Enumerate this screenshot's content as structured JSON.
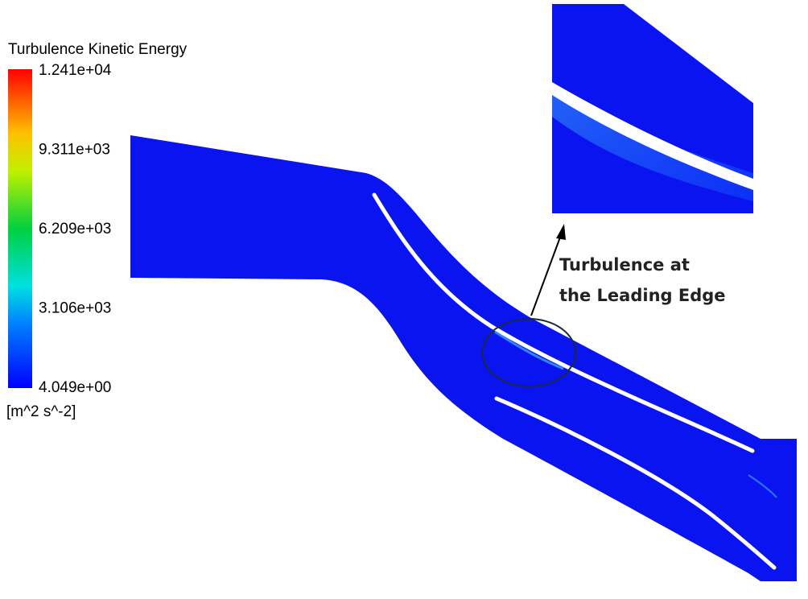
{
  "legend": {
    "title": "Turbulence Kinetic Energy",
    "ticks": [
      "1.241e+04",
      "9.311e+03",
      "6.209e+03",
      "3.106e+03",
      "4.049e+00"
    ],
    "unit": "[m^2 s^-2]"
  },
  "annotation": {
    "lines": [
      "Turbulence at",
      "the Leading Edge"
    ]
  }
}
